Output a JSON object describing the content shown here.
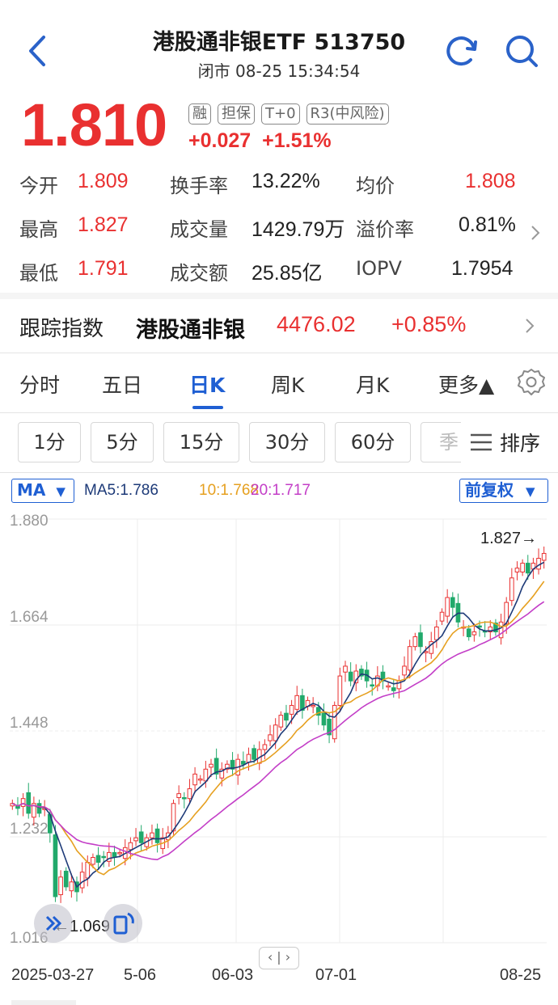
{
  "header": {
    "title": "港股通非银ETF 513750",
    "subtitle": "闭市 08-25 15:34:54"
  },
  "quote": {
    "price": "1.810",
    "tags": [
      "融",
      "担保",
      "T+0",
      "R3(中风险)"
    ],
    "change": "+0.027",
    "change_pct": "+1.51%"
  },
  "stats": {
    "open_label": "今开",
    "open": "1.809",
    "high_label": "最高",
    "high": "1.827",
    "low_label": "最低",
    "low": "1.791",
    "turnover_rate_label": "换手率",
    "turnover_rate": "13.22%",
    "volume_label": "成交量",
    "volume": "1429.79万",
    "amount_label": "成交额",
    "amount": "25.85亿",
    "avg_label": "均价",
    "avg": "1.808",
    "premium_label": "溢价率",
    "premium": "0.81%",
    "iopv_label": "IOPV",
    "iopv": "1.7954"
  },
  "tracking": {
    "label": "跟踪指数",
    "name": "港股通非银",
    "value": "4476.02",
    "change_pct": "+0.85%"
  },
  "tabs": [
    "分时",
    "五日",
    "日K",
    "周K",
    "月K",
    "更多▲"
  ],
  "active_tab": "日K",
  "periods": [
    "1分",
    "5分",
    "15分",
    "30分",
    "60分",
    "季"
  ],
  "sort_label": "排序",
  "ma": {
    "selector": "MA",
    "ma5": "MA5:1.786",
    "ma10": "10:1.768",
    "ma20": "20:1.717"
  },
  "adjust_label": "前复权",
  "chart_data": {
    "type": "candlestick",
    "y_ticks": [
      "1.880",
      "1.664",
      "1.448",
      "1.232",
      "1.016"
    ],
    "ylim": [
      1.016,
      1.88
    ],
    "x_ticks": [
      "2025-03-27",
      "5-06",
      "06-03",
      "07-01",
      "08-25"
    ],
    "max_marker": "1.827→",
    "min_marker": "←1.069",
    "series": [
      {
        "name": "MA5",
        "color": "#1d3a78"
      },
      {
        "name": "10",
        "color": "#e6a020"
      },
      {
        "name": "20",
        "color": "#c33ec7"
      }
    ],
    "closes": [
      1.3,
      1.29,
      1.31,
      1.28,
      1.3,
      1.28,
      1.29,
      1.24,
      1.11,
      1.15,
      1.13,
      1.14,
      1.12,
      1.16,
      1.18,
      1.19,
      1.18,
      1.19,
      1.2,
      1.19,
      1.2,
      1.21,
      1.22,
      1.23,
      1.22,
      1.23,
      1.24,
      1.22,
      1.23,
      1.24,
      1.3,
      1.32,
      1.31,
      1.33,
      1.36,
      1.35,
      1.37,
      1.38,
      1.36,
      1.37,
      1.38,
      1.37,
      1.39,
      1.38,
      1.4,
      1.39,
      1.41,
      1.42,
      1.44,
      1.46,
      1.48,
      1.47,
      1.5,
      1.52,
      1.49,
      1.51,
      1.5,
      1.48,
      1.46,
      1.44,
      1.5,
      1.56,
      1.58,
      1.55,
      1.57,
      1.56,
      1.55,
      1.54,
      1.56,
      1.55,
      1.54,
      1.53,
      1.55,
      1.58,
      1.62,
      1.64,
      1.62,
      1.61,
      1.63,
      1.66,
      1.69,
      1.72,
      1.7,
      1.67,
      1.66,
      1.64,
      1.65,
      1.66,
      1.65,
      1.66,
      1.65,
      1.67,
      1.71,
      1.76,
      1.78,
      1.79,
      1.77,
      1.79,
      1.8,
      1.81
    ]
  }
}
